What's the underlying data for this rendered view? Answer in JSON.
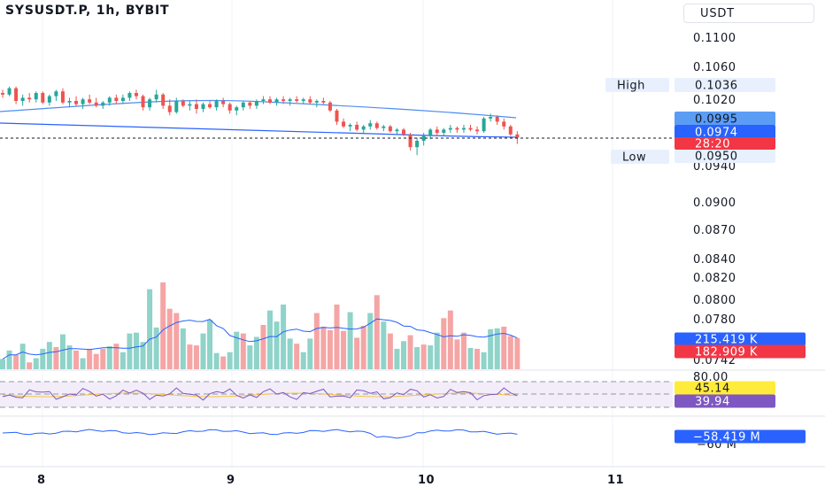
{
  "header": {
    "symbol_title": "SYSUSDT.P, 1h, BYBIT",
    "currency": "USDT"
  },
  "price_axis": {
    "labels": [
      "0.1100",
      "0.1060",
      "0.1020",
      "0.0940",
      "0.0900",
      "0.0870",
      "0.0840",
      "0.0820",
      "0.0800",
      "0.0780",
      "0.0742"
    ]
  },
  "tags": {
    "high_label": "High",
    "high_value": "0.1036",
    "low_label": "Low",
    "low_value": "0.0950",
    "ma_value": "0.0995",
    "last_price": "0.0974",
    "countdown": "28:20",
    "vol_ma": "215.419 K",
    "vol_last": "182.909 K",
    "rsi_level": "80.00",
    "rsi_value": "45.14",
    "rsi_ma": "39.94",
    "obv_value": "−58.419 M",
    "obv_axis_partial": "−60 M"
  },
  "time_axis": [
    "8",
    "9",
    "10",
    "11"
  ],
  "colors": {
    "up": "#26a69a",
    "down": "#ef5350",
    "blue": "#2962ff",
    "ma_line": "#4f8df0",
    "ma_tag": "#5b9cf5",
    "last_tag": "#2962ff",
    "countdown_tag": "#f23645",
    "rsi_tag": "#ffeb3b",
    "rsi_ma_tag": "#7e57c2",
    "volume_up": "#8fd3c9",
    "volume_down": "#f5a5a5"
  },
  "chart_data": {
    "type": "candlestick",
    "series": [
      {
        "name": "SYSUSDT.P",
        "candles": [
          [
            0.103,
            0.1034,
            0.1024,
            0.1028
          ],
          [
            0.1028,
            0.1038,
            0.1026,
            0.1036
          ],
          [
            0.1036,
            0.1038,
            0.1016,
            0.102
          ],
          [
            0.102,
            0.1028,
            0.1014,
            0.1024
          ],
          [
            0.1024,
            0.103,
            0.1018,
            0.1022
          ],
          [
            0.1022,
            0.1032,
            0.1018,
            0.103
          ],
          [
            0.103,
            0.1032,
            0.1016,
            0.1018
          ],
          [
            0.1018,
            0.1028,
            0.1014,
            0.1026
          ],
          [
            0.1026,
            0.1034,
            0.102,
            0.1032
          ],
          [
            0.1032,
            0.1036,
            0.1016,
            0.1018
          ],
          [
            0.1018,
            0.1024,
            0.1012,
            0.102
          ],
          [
            0.102,
            0.1026,
            0.1014,
            0.1016
          ],
          [
            0.1016,
            0.1024,
            0.101,
            0.1022
          ],
          [
            0.1022,
            0.1028,
            0.1016,
            0.1018
          ],
          [
            0.1018,
            0.1024,
            0.1012,
            0.1014
          ],
          [
            0.1014,
            0.102,
            0.101,
            0.1018
          ],
          [
            0.1018,
            0.1026,
            0.1014,
            0.1024
          ],
          [
            0.1024,
            0.1028,
            0.1016,
            0.102
          ],
          [
            0.102,
            0.1028,
            0.1016,
            0.1024
          ],
          [
            0.1024,
            0.1032,
            0.102,
            0.103
          ],
          [
            0.103,
            0.1034,
            0.1022,
            0.1026
          ],
          [
            0.1026,
            0.1028,
            0.1008,
            0.1012
          ],
          [
            0.1012,
            0.1024,
            0.1008,
            0.1022
          ],
          [
            0.1022,
            0.1034,
            0.1018,
            0.1028
          ],
          [
            0.1028,
            0.103,
            0.101,
            0.1014
          ],
          [
            0.1014,
            0.1022,
            0.1002,
            0.1006
          ],
          [
            0.1006,
            0.1024,
            0.1004,
            0.102
          ],
          [
            0.102,
            0.1022,
            0.1012,
            0.1014
          ],
          [
            0.1014,
            0.102,
            0.1008,
            0.1016
          ],
          [
            0.1016,
            0.1022,
            0.1004,
            0.101
          ],
          [
            0.101,
            0.1018,
            0.1006,
            0.1016
          ],
          [
            0.1016,
            0.102,
            0.101,
            0.1012
          ],
          [
            0.1012,
            0.1022,
            0.1008,
            0.102
          ],
          [
            0.102,
            0.1024,
            0.1012,
            0.1016
          ],
          [
            0.1016,
            0.1018,
            0.1004,
            0.1008
          ],
          [
            0.1008,
            0.1014,
            0.1002,
            0.1012
          ],
          [
            0.1012,
            0.102,
            0.1008,
            0.1018
          ],
          [
            0.1018,
            0.102,
            0.101,
            0.1014
          ],
          [
            0.1014,
            0.1022,
            0.101,
            0.102
          ],
          [
            0.102,
            0.1026,
            0.1016,
            0.1022
          ],
          [
            0.1022,
            0.1026,
            0.1016,
            0.1018
          ],
          [
            0.1018,
            0.1024,
            0.1014,
            0.1022
          ],
          [
            0.1022,
            0.1026,
            0.1016,
            0.102
          ],
          [
            0.102,
            0.1024,
            0.1014,
            0.1022
          ],
          [
            0.1022,
            0.1026,
            0.1018,
            0.102
          ],
          [
            0.102,
            0.1024,
            0.1016,
            0.1022
          ],
          [
            0.1022,
            0.1026,
            0.1016,
            0.1018
          ],
          [
            0.1018,
            0.1022,
            0.1012,
            0.102
          ],
          [
            0.102,
            0.1024,
            0.1016,
            0.1018
          ],
          [
            0.1018,
            0.102,
            0.1006,
            0.1008
          ],
          [
            0.1008,
            0.101,
            0.099,
            0.0994
          ],
          [
            0.0994,
            0.0998,
            0.0986,
            0.0988
          ],
          [
            0.0988,
            0.0992,
            0.0982,
            0.099
          ],
          [
            0.099,
            0.0994,
            0.0982,
            0.0984
          ],
          [
            0.0984,
            0.099,
            0.098,
            0.0988
          ],
          [
            0.0988,
            0.0996,
            0.0984,
            0.0992
          ],
          [
            0.0992,
            0.0994,
            0.0984,
            0.0986
          ],
          [
            0.0986,
            0.099,
            0.0982,
            0.0988
          ],
          [
            0.0988,
            0.099,
            0.098,
            0.0982
          ],
          [
            0.0982,
            0.0986,
            0.0978,
            0.0984
          ],
          [
            0.0984,
            0.0986,
            0.0976,
            0.0978
          ],
          [
            0.0978,
            0.098,
            0.0958,
            0.0962
          ],
          [
            0.0962,
            0.0974,
            0.0952,
            0.097
          ],
          [
            0.097,
            0.098,
            0.0964,
            0.0976
          ],
          [
            0.0976,
            0.0986,
            0.0972,
            0.0984
          ],
          [
            0.0984,
            0.0988,
            0.0976,
            0.098
          ],
          [
            0.098,
            0.0986,
            0.0976,
            0.0984
          ],
          [
            0.0984,
            0.099,
            0.098,
            0.0986
          ],
          [
            0.0986,
            0.0988,
            0.098,
            0.0984
          ],
          [
            0.0984,
            0.099,
            0.098,
            0.0986
          ],
          [
            0.0986,
            0.099,
            0.0982,
            0.0984
          ],
          [
            0.0984,
            0.0988,
            0.0978,
            0.0982
          ],
          [
            0.0982,
            0.1,
            0.098,
            0.0998
          ],
          [
            0.0998,
            0.1004,
            0.0994,
            0.1
          ],
          [
            0.1,
            0.1002,
            0.099,
            0.0994
          ],
          [
            0.0994,
            0.0998,
            0.0984,
            0.0988
          ],
          [
            0.0988,
            0.099,
            0.0976,
            0.0978
          ],
          [
            0.0978,
            0.0982,
            0.0966,
            0.0974
          ]
        ],
        "volume": [
          [
            60,
            1
          ],
          [
            110,
            1
          ],
          [
            85,
            0
          ],
          [
            150,
            1
          ],
          [
            40,
            0
          ],
          [
            65,
            1
          ],
          [
            120,
            1
          ],
          [
            160,
            1
          ],
          [
            130,
            0
          ],
          [
            205,
            1
          ],
          [
            140,
            1
          ],
          [
            110,
            0
          ],
          [
            65,
            1
          ],
          [
            120,
            0
          ],
          [
            90,
            0
          ],
          [
            120,
            0
          ],
          [
            135,
            1
          ],
          [
            150,
            0
          ],
          [
            100,
            1
          ],
          [
            210,
            1
          ],
          [
            215,
            1
          ],
          [
            160,
            1
          ],
          [
            470,
            1
          ],
          [
            245,
            1
          ],
          [
            510,
            0
          ],
          [
            355,
            0
          ],
          [
            330,
            0
          ],
          [
            240,
            1
          ],
          [
            145,
            0
          ],
          [
            140,
            0
          ],
          [
            210,
            1
          ],
          [
            290,
            1
          ],
          [
            95,
            1
          ],
          [
            75,
            0
          ],
          [
            100,
            1
          ],
          [
            220,
            1
          ],
          [
            210,
            0
          ],
          [
            140,
            1
          ],
          [
            190,
            1
          ],
          [
            260,
            0
          ],
          [
            345,
            1
          ],
          [
            280,
            1
          ],
          [
            380,
            1
          ],
          [
            180,
            1
          ],
          [
            150,
            0
          ],
          [
            100,
            1
          ],
          [
            180,
            1
          ],
          [
            330,
            0
          ],
          [
            250,
            0
          ],
          [
            230,
            0
          ],
          [
            380,
            0
          ],
          [
            225,
            0
          ],
          [
            335,
            1
          ],
          [
            185,
            0
          ],
          [
            255,
            0
          ],
          [
            330,
            1
          ],
          [
            435,
            0
          ],
          [
            280,
            1
          ],
          [
            210,
            0
          ],
          [
            120,
            1
          ],
          [
            165,
            1
          ],
          [
            200,
            0
          ],
          [
            130,
            1
          ],
          [
            145,
            0
          ],
          [
            140,
            1
          ],
          [
            215,
            1
          ],
          [
            300,
            0
          ],
          [
            345,
            0
          ],
          [
            175,
            0
          ],
          [
            215,
            0
          ],
          [
            125,
            1
          ],
          [
            120,
            0
          ],
          [
            100,
            1
          ],
          [
            235,
            1
          ],
          [
            240,
            1
          ],
          [
            250,
            0
          ],
          [
            195,
            0
          ],
          [
            183,
            0
          ]
        ]
      }
    ]
  }
}
